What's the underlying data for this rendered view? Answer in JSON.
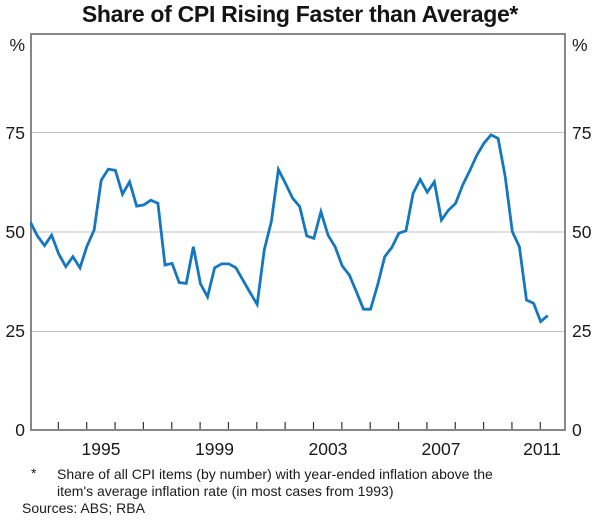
{
  "title": "Share of CPI Rising Faster than Average*",
  "y_axis": {
    "unit": "%",
    "ticks": [
      "75",
      "50",
      "25",
      "0"
    ]
  },
  "x_axis": {
    "labels": [
      "1995",
      "1999",
      "2003",
      "2007",
      "2011"
    ]
  },
  "footnote": {
    "marker": "*",
    "line1": "Share of all CPI items (by number) with year-ended inflation above the",
    "line2": "item's average inflation rate (in most cases from 1993)"
  },
  "sources": "Sources: ABS; RBA",
  "colors": {
    "line": "#1577be",
    "grid": "#c2c2c2",
    "frame": "#878787",
    "tick": "#333333",
    "text": "#1a1a1a"
  },
  "chart_data": {
    "type": "line",
    "title": "Share of CPI Rising Faster than Average",
    "series_name": "Share of CPI items with year-ended inflation above item average",
    "ylabel": "%",
    "ylim": [
      0,
      100
    ],
    "yticks": [
      0,
      25,
      50,
      75
    ],
    "gridlines_y": [
      25,
      50,
      75
    ],
    "grid": "horizontal",
    "legend": "none",
    "frequency": "quarterly",
    "x_axis_range_years": [
      1993,
      2012
    ],
    "xtick_labels": [
      "1995",
      "1999",
      "2003",
      "2007",
      "2011"
    ],
    "x": [
      "1992Q4",
      "1993Q1",
      "1993Q2",
      "1993Q3",
      "1993Q4",
      "1994Q1",
      "1994Q2",
      "1994Q3",
      "1994Q4",
      "1995Q1",
      "1995Q2",
      "1995Q3",
      "1995Q4",
      "1996Q1",
      "1996Q2",
      "1996Q3",
      "1996Q4",
      "1997Q1",
      "1997Q2",
      "1997Q3",
      "1997Q4",
      "1998Q1",
      "1998Q2",
      "1998Q3",
      "1998Q4",
      "1999Q1",
      "1999Q2",
      "1999Q3",
      "1999Q4",
      "2000Q1",
      "2000Q2",
      "2000Q3",
      "2000Q4",
      "2001Q1",
      "2001Q2",
      "2001Q3",
      "2001Q4",
      "2002Q1",
      "2002Q2",
      "2002Q3",
      "2002Q4",
      "2003Q1",
      "2003Q2",
      "2003Q3",
      "2003Q4",
      "2004Q1",
      "2004Q2",
      "2004Q3",
      "2004Q4",
      "2005Q1",
      "2005Q2",
      "2005Q3",
      "2005Q4",
      "2006Q1",
      "2006Q2",
      "2006Q3",
      "2006Q4",
      "2007Q1",
      "2007Q2",
      "2007Q3",
      "2007Q4",
      "2008Q1",
      "2008Q2",
      "2008Q3",
      "2008Q4",
      "2009Q1",
      "2009Q2",
      "2009Q3",
      "2009Q4",
      "2010Q1",
      "2010Q2",
      "2010Q3",
      "2010Q4",
      "2011Q1"
    ],
    "values": [
      52.5,
      49,
      46.6,
      49.2,
      44.5,
      41.3,
      43.8,
      41,
      46.5,
      50.5,
      63,
      65.8,
      65.5,
      59.5,
      62.6,
      56.5,
      56.8,
      58,
      57.2,
      41.7,
      42.1,
      37.3,
      37.1,
      46.3,
      37,
      33.7,
      41,
      42,
      42,
      41,
      37.9,
      34.8,
      31.8,
      45.5,
      52.6,
      65.7,
      62.2,
      58.5,
      56.4,
      49,
      48.4,
      55.1,
      49.2,
      46.3,
      41.5,
      39.2,
      35,
      30.6,
      30.6,
      36.7,
      43.8,
      46.1,
      49.7,
      50.3,
      59.7,
      63.2,
      60,
      62.6,
      53,
      55.5,
      57.2,
      61.8,
      65.4,
      69.3,
      72.3,
      74.4,
      73.5,
      63.9,
      50.1,
      46.3,
      32.9,
      32.1,
      27.5,
      29
    ]
  }
}
